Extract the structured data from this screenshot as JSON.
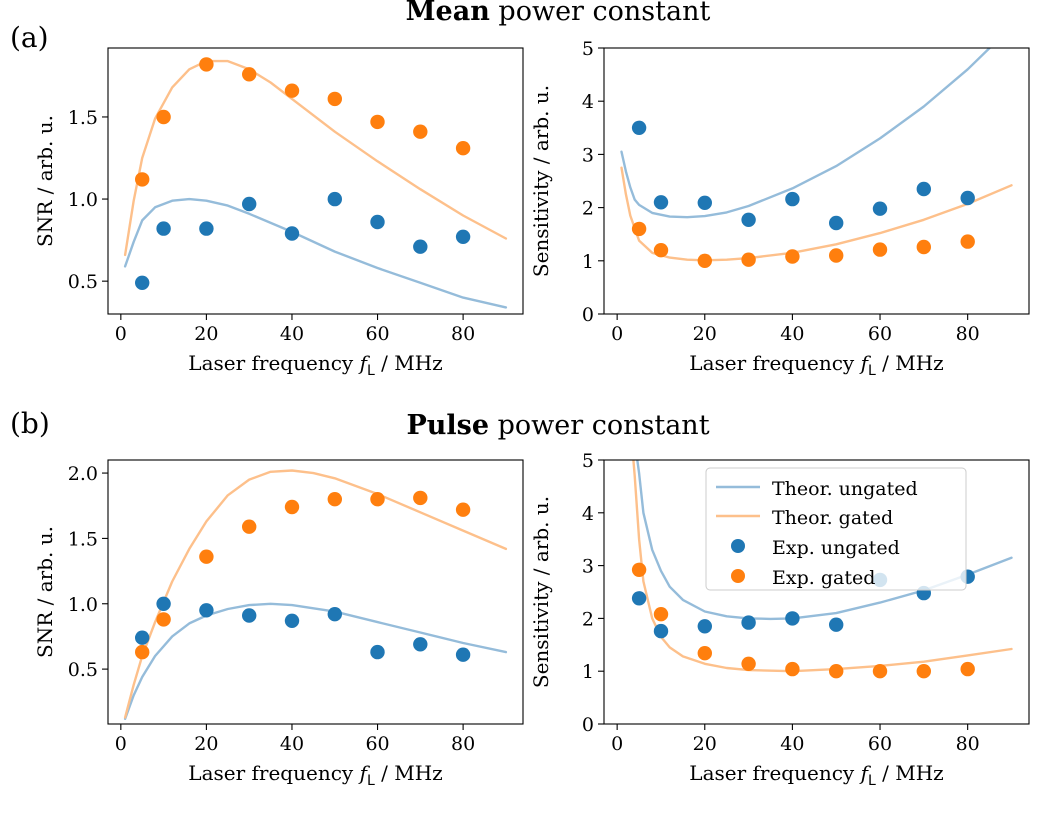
{
  "panels": [
    {
      "label": "(a)",
      "title_bold": "Mean",
      "title_rest": " power constant"
    },
    {
      "label": "(b)",
      "title_bold": "Pulse",
      "title_rest": " power constant"
    }
  ],
  "colors": {
    "ungated": "#1f77b4",
    "gated": "#ff7f0e",
    "theor_ungated": "#95bcda",
    "theor_gated": "#fdc08b"
  },
  "legend": {
    "theor_ungated": "Theor. ungated",
    "theor_gated": "Theor. gated",
    "exp_ungated": "Exp. ungated",
    "exp_gated": "Exp. gated"
  },
  "chart_data": [
    {
      "id": "a-snr",
      "type": "line",
      "panel": "(a)",
      "title": "Mean power constant",
      "xlabel_main": "Laser frequency ",
      "xlabel_sym": "f",
      "xlabel_sub": "L",
      "xlabel_unit": " / MHz",
      "ylabel": "SNR / arb. u.",
      "xlim": [
        -3,
        94
      ],
      "ylim": [
        0.3,
        1.92
      ],
      "xticks": [
        0,
        20,
        40,
        60,
        80
      ],
      "yticks": [
        0.5,
        1.0,
        1.5
      ],
      "ytick_labels": [
        "0.5",
        "1.0",
        "1.5"
      ],
      "series": [
        {
          "name": "Theor. ungated",
          "kind": "line",
          "color": "#95bcda",
          "x": [
            1,
            3,
            5,
            8,
            12,
            16,
            20,
            25,
            30,
            40,
            50,
            60,
            70,
            80,
            90
          ],
          "y": [
            0.59,
            0.74,
            0.87,
            0.95,
            0.99,
            1.0,
            0.99,
            0.96,
            0.91,
            0.8,
            0.68,
            0.58,
            0.49,
            0.4,
            0.34
          ]
        },
        {
          "name": "Theor. gated",
          "kind": "line",
          "color": "#fdc08b",
          "x": [
            1,
            3,
            5,
            8,
            12,
            16,
            20,
            25,
            30,
            35,
            40,
            50,
            60,
            70,
            80,
            90
          ],
          "y": [
            0.66,
            0.99,
            1.25,
            1.49,
            1.68,
            1.79,
            1.84,
            1.84,
            1.79,
            1.71,
            1.61,
            1.41,
            1.23,
            1.06,
            0.9,
            0.76
          ]
        },
        {
          "name": "Exp. ungated",
          "kind": "scatter",
          "color": "#1f77b4",
          "x": [
            5,
            10,
            20,
            30,
            40,
            50,
            60,
            70,
            80
          ],
          "y": [
            0.49,
            0.82,
            0.82,
            0.97,
            0.79,
            1.0,
            0.86,
            0.71,
            0.77
          ]
        },
        {
          "name": "Exp. gated",
          "kind": "scatter",
          "color": "#ff7f0e",
          "x": [
            5,
            10,
            20,
            30,
            40,
            50,
            60,
            70,
            80
          ],
          "y": [
            1.12,
            1.5,
            1.82,
            1.76,
            1.66,
            1.61,
            1.47,
            1.41,
            1.31
          ]
        }
      ]
    },
    {
      "id": "a-sens",
      "type": "line",
      "panel": "(a)",
      "xlabel_main": "Laser frequency ",
      "xlabel_sym": "f",
      "xlabel_sub": "L",
      "xlabel_unit": " / MHz",
      "ylabel": "Sensitivity / arb. u.",
      "xlim": [
        -3,
        94
      ],
      "ylim": [
        0,
        5
      ],
      "xticks": [
        0,
        20,
        40,
        60,
        80
      ],
      "yticks": [
        0,
        1,
        2,
        3,
        4,
        5
      ],
      "ytick_labels": [
        "0",
        "1",
        "2",
        "3",
        "4",
        "5"
      ],
      "series": [
        {
          "name": "Theor. ungated",
          "kind": "line",
          "color": "#95bcda",
          "x": [
            1,
            2,
            3,
            4,
            5,
            8,
            12,
            16,
            20,
            25,
            30,
            40,
            50,
            60,
            70,
            80,
            85
          ],
          "y": [
            3.05,
            2.68,
            2.38,
            2.15,
            2.05,
            1.9,
            1.83,
            1.82,
            1.84,
            1.91,
            2.03,
            2.36,
            2.78,
            3.3,
            3.9,
            4.6,
            5.0
          ]
        },
        {
          "name": "Theor. gated",
          "kind": "line",
          "color": "#fdc08b",
          "x": [
            1,
            2,
            3,
            5,
            8,
            12,
            16,
            20,
            25,
            30,
            40,
            50,
            60,
            70,
            80,
            90
          ],
          "y": [
            2.75,
            2.25,
            1.85,
            1.38,
            1.15,
            1.06,
            1.02,
            1.01,
            1.02,
            1.05,
            1.15,
            1.31,
            1.52,
            1.77,
            2.07,
            2.42
          ]
        },
        {
          "name": "Exp. ungated",
          "kind": "scatter",
          "color": "#1f77b4",
          "x": [
            5,
            10,
            20,
            30,
            40,
            50,
            60,
            70,
            80
          ],
          "y": [
            3.5,
            2.1,
            2.09,
            1.77,
            2.16,
            1.71,
            1.98,
            2.35,
            2.18
          ]
        },
        {
          "name": "Exp. gated",
          "kind": "scatter",
          "color": "#ff7f0e",
          "x": [
            5,
            10,
            20,
            30,
            40,
            50,
            60,
            70,
            80
          ],
          "y": [
            1.6,
            1.2,
            1.0,
            1.02,
            1.08,
            1.1,
            1.21,
            1.26,
            1.36
          ]
        }
      ]
    },
    {
      "id": "b-snr",
      "type": "line",
      "panel": "(b)",
      "title": "Pulse power constant",
      "xlabel_main": "Laser frequency ",
      "xlabel_sym": "f",
      "xlabel_sub": "L",
      "xlabel_unit": " / MHz",
      "ylabel": "SNR / arb. u.",
      "xlim": [
        -3,
        94
      ],
      "ylim": [
        0.08,
        2.1
      ],
      "xticks": [
        0,
        20,
        40,
        60,
        80
      ],
      "yticks": [
        0.5,
        1.0,
        1.5,
        2.0
      ],
      "ytick_labels": [
        "0.5",
        "1.0",
        "1.5",
        "2.0"
      ],
      "series": [
        {
          "name": "Theor. ungated",
          "kind": "line",
          "color": "#95bcda",
          "x": [
            1,
            3,
            5,
            8,
            12,
            16,
            20,
            25,
            30,
            35,
            40,
            50,
            60,
            70,
            80,
            90
          ],
          "y": [
            0.12,
            0.3,
            0.44,
            0.6,
            0.75,
            0.85,
            0.91,
            0.96,
            0.99,
            1.0,
            0.99,
            0.94,
            0.86,
            0.78,
            0.7,
            0.63
          ]
        },
        {
          "name": "Theor. gated",
          "kind": "line",
          "color": "#fdc08b",
          "x": [
            1,
            3,
            5,
            8,
            12,
            16,
            20,
            25,
            30,
            35,
            40,
            45,
            50,
            60,
            70,
            80,
            90
          ],
          "y": [
            0.13,
            0.38,
            0.6,
            0.86,
            1.17,
            1.42,
            1.63,
            1.83,
            1.95,
            2.01,
            2.02,
            2.0,
            1.96,
            1.84,
            1.7,
            1.56,
            1.42
          ]
        },
        {
          "name": "Exp. ungated",
          "kind": "scatter",
          "color": "#1f77b4",
          "x": [
            5,
            10,
            20,
            30,
            40,
            50,
            60,
            70,
            80
          ],
          "y": [
            0.74,
            1.0,
            0.95,
            0.91,
            0.87,
            0.92,
            0.63,
            0.69,
            0.61
          ]
        },
        {
          "name": "Exp. gated",
          "kind": "scatter",
          "color": "#ff7f0e",
          "x": [
            5,
            10,
            20,
            30,
            40,
            50,
            60,
            70,
            80
          ],
          "y": [
            0.63,
            0.88,
            1.36,
            1.59,
            1.74,
            1.8,
            1.8,
            1.81,
            1.72
          ]
        }
      ]
    },
    {
      "id": "b-sens",
      "type": "line",
      "panel": "(b)",
      "xlabel_main": "Laser frequency ",
      "xlabel_sym": "f",
      "xlabel_sub": "L",
      "xlabel_unit": " / MHz",
      "ylabel": "Sensitivity / arb. u.",
      "xlim": [
        -3,
        94
      ],
      "ylim": [
        0,
        5
      ],
      "xticks": [
        0,
        20,
        40,
        60,
        80
      ],
      "yticks": [
        0,
        1,
        2,
        3,
        4,
        5
      ],
      "ytick_labels": [
        "0",
        "1",
        "2",
        "3",
        "4",
        "5"
      ],
      "legend": "upper right",
      "series": [
        {
          "name": "Theor. ungated",
          "kind": "line",
          "color": "#95bcda",
          "x": [
            4.6,
            5,
            6,
            8,
            10,
            12,
            15,
            20,
            25,
            30,
            35,
            40,
            50,
            60,
            70,
            80,
            90
          ],
          "y": [
            5.0,
            4.75,
            4.0,
            3.3,
            2.9,
            2.6,
            2.35,
            2.13,
            2.04,
            2.0,
            1.99,
            2.0,
            2.1,
            2.3,
            2.53,
            2.83,
            3.15
          ]
        },
        {
          "name": "Theor. gated",
          "kind": "line",
          "color": "#fdc08b",
          "x": [
            3.7,
            4,
            5,
            6,
            8,
            10,
            12,
            15,
            20,
            25,
            30,
            40,
            50,
            60,
            70,
            80,
            90
          ],
          "y": [
            5.0,
            4.7,
            3.5,
            2.7,
            2.0,
            1.65,
            1.45,
            1.28,
            1.14,
            1.06,
            1.02,
            1.0,
            1.04,
            1.1,
            1.18,
            1.3,
            1.42
          ]
        },
        {
          "name": "Exp. ungated",
          "kind": "scatter",
          "color": "#1f77b4",
          "x": [
            5,
            10,
            20,
            30,
            40,
            50,
            60,
            70,
            80
          ],
          "y": [
            2.38,
            1.76,
            1.85,
            1.92,
            2.0,
            1.88,
            2.73,
            2.48,
            2.79
          ]
        },
        {
          "name": "Exp. gated",
          "kind": "scatter",
          "color": "#ff7f0e",
          "x": [
            5,
            10,
            20,
            30,
            40,
            50,
            60,
            70,
            80
          ],
          "y": [
            2.92,
            2.08,
            1.34,
            1.14,
            1.04,
            1.0,
            1.0,
            1.0,
            1.04
          ]
        }
      ]
    }
  ]
}
